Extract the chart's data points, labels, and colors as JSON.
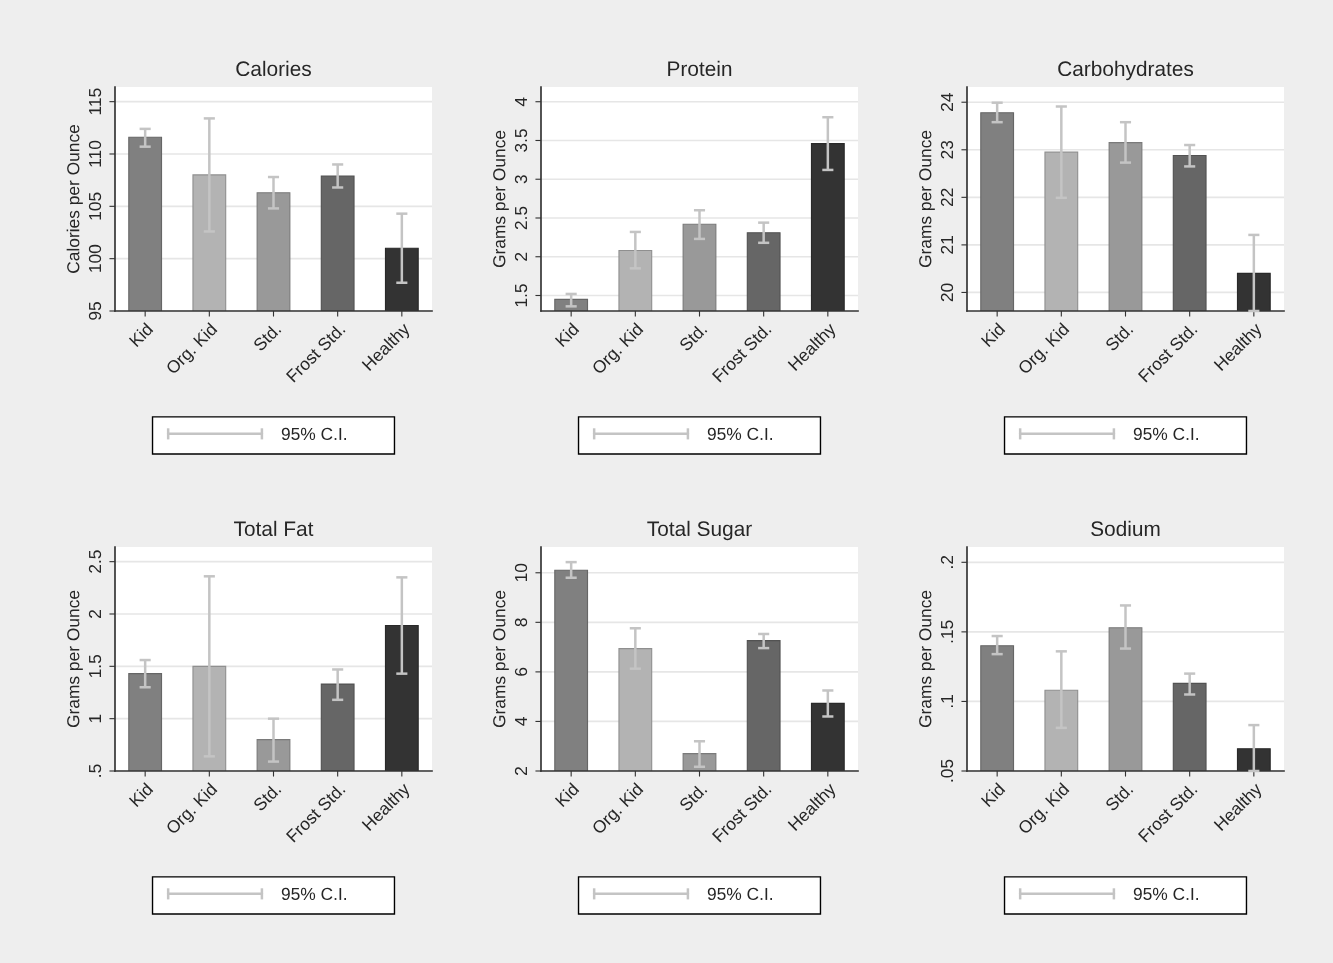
{
  "chart_data": [
    {
      "type": "bar",
      "title": "Calories",
      "ylabel": "Calories per Ounce",
      "categories": [
        "Kid",
        "Org. Kid",
        "Std.",
        "Frost Std.",
        "Healthy"
      ],
      "series": [
        {
          "name": "95% C.I.",
          "colors": [
            "#808080",
            "#b3b3b3",
            "#999999",
            "#666666",
            "#333333"
          ],
          "values": [
            111.6,
            108.0,
            106.3,
            107.9,
            101.0
          ],
          "errors": [
            [
              110.7,
              112.4
            ],
            [
              102.6,
              113.4
            ],
            [
              104.8,
              107.8
            ],
            [
              106.8,
              109.0
            ],
            [
              97.7,
              104.3
            ]
          ]
        }
      ],
      "ylim": [
        95,
        116.4
      ],
      "yticks": [
        95,
        100,
        105,
        110,
        115
      ],
      "grid": "y",
      "legend": "bottom"
    },
    {
      "type": "bar",
      "title": "Protein",
      "ylabel": "Grams per Ounce",
      "categories": [
        "Kid",
        "Org. Kid",
        "Std.",
        "Frost Std.",
        "Healthy"
      ],
      "series": [
        {
          "name": "95% C.I.",
          "colors": [
            "#808080",
            "#b3b3b3",
            "#999999",
            "#666666",
            "#333333"
          ],
          "values": [
            1.45,
            2.08,
            2.42,
            2.31,
            3.46
          ],
          "errors": [
            [
              1.36,
              1.52
            ],
            [
              1.85,
              2.32
            ],
            [
              2.23,
              2.6
            ],
            [
              2.18,
              2.44
            ],
            [
              3.12,
              3.8
            ]
          ]
        }
      ],
      "ylim": [
        1.3,
        4.19
      ],
      "yticks": [
        1.5,
        2,
        2.5,
        3,
        3.5,
        4
      ],
      "grid": "y",
      "legend": "bottom"
    },
    {
      "type": "bar",
      "title": "Carbohydrates",
      "ylabel": "Grams per Ounce",
      "categories": [
        "Kid",
        "Org. Kid",
        "Std.",
        "Frost Std.",
        "Healthy"
      ],
      "series": [
        {
          "name": "95% C.I.",
          "colors": [
            "#808080",
            "#b3b3b3",
            "#999999",
            "#666666",
            "#333333"
          ],
          "values": [
            23.78,
            22.95,
            23.15,
            22.88,
            20.4
          ],
          "errors": [
            [
              23.58,
              23.99
            ],
            [
              21.99,
              23.91
            ],
            [
              22.73,
              23.58
            ],
            [
              22.65,
              23.1
            ],
            [
              19.61,
              21.21
            ]
          ]
        }
      ],
      "ylim": [
        19.61,
        24.32
      ],
      "yticks": [
        20,
        21,
        22,
        23,
        24
      ],
      "grid": "y",
      "legend": "bottom"
    },
    {
      "type": "bar",
      "title": "Total Fat",
      "ylabel": "Grams per Ounce",
      "categories": [
        "Kid",
        "Org. Kid",
        "Std.",
        "Frost Std.",
        "Healthy"
      ],
      "series": [
        {
          "name": "95% C.I.",
          "colors": [
            "#808080",
            "#b3b3b3",
            "#999999",
            "#666666",
            "#333333"
          ],
          "values": [
            1.43,
            1.5,
            0.8,
            1.33,
            1.89
          ],
          "errors": [
            [
              1.3,
              1.56
            ],
            [
              0.64,
              2.36
            ],
            [
              0.59,
              1.0
            ],
            [
              1.18,
              1.47
            ],
            [
              1.43,
              2.35
            ]
          ]
        }
      ],
      "ylim": [
        0.5,
        2.64
      ],
      "yticks": [
        {
          "value": 0.5,
          "label": ".5"
        },
        1,
        1.5,
        2,
        2.5
      ],
      "grid": "y",
      "legend": "bottom"
    },
    {
      "type": "bar",
      "title": "Total Sugar",
      "ylabel": "Grams per Ounce",
      "categories": [
        "Kid",
        "Org. Kid",
        "Std.",
        "Frost Std.",
        "Healthy"
      ],
      "series": [
        {
          "name": "95% C.I.",
          "colors": [
            "#808080",
            "#b3b3b3",
            "#999999",
            "#666666",
            "#333333"
          ],
          "values": [
            10.1,
            6.94,
            2.7,
            7.26,
            4.73
          ],
          "errors": [
            [
              9.8,
              10.43
            ],
            [
              6.13,
              7.76
            ],
            [
              2.17,
              3.2
            ],
            [
              6.96,
              7.53
            ],
            [
              4.2,
              5.25
            ]
          ]
        }
      ],
      "ylim": [
        2,
        11.04
      ],
      "yticks": [
        2,
        4,
        6,
        8,
        10
      ],
      "grid": "y",
      "legend": "bottom"
    },
    {
      "type": "bar",
      "title": "Sodium",
      "ylabel": "Grams per Ounce",
      "categories": [
        "Kid",
        "Org. Kid",
        "Std.",
        "Frost Std.",
        "Healthy"
      ],
      "series": [
        {
          "name": "95% C.I.",
          "colors": [
            "#808080",
            "#b3b3b3",
            "#999999",
            "#666666",
            "#333333"
          ],
          "values": [
            0.14,
            0.108,
            0.153,
            0.113,
            0.066
          ],
          "errors": [
            [
              0.134,
              0.147
            ],
            [
              0.081,
              0.136
            ],
            [
              0.138,
              0.169
            ],
            [
              0.105,
              0.12
            ],
            [
              0.05,
              0.083
            ]
          ]
        }
      ],
      "ylim": [
        0.05,
        0.211
      ],
      "yticks": [
        {
          "value": 0.05,
          "label": ".05"
        },
        {
          "value": 0.1,
          "label": ".1"
        },
        {
          "value": 0.15,
          "label": ".15"
        },
        {
          "value": 0.2,
          "label": ".2"
        }
      ],
      "grid": "y",
      "legend": "bottom"
    }
  ]
}
